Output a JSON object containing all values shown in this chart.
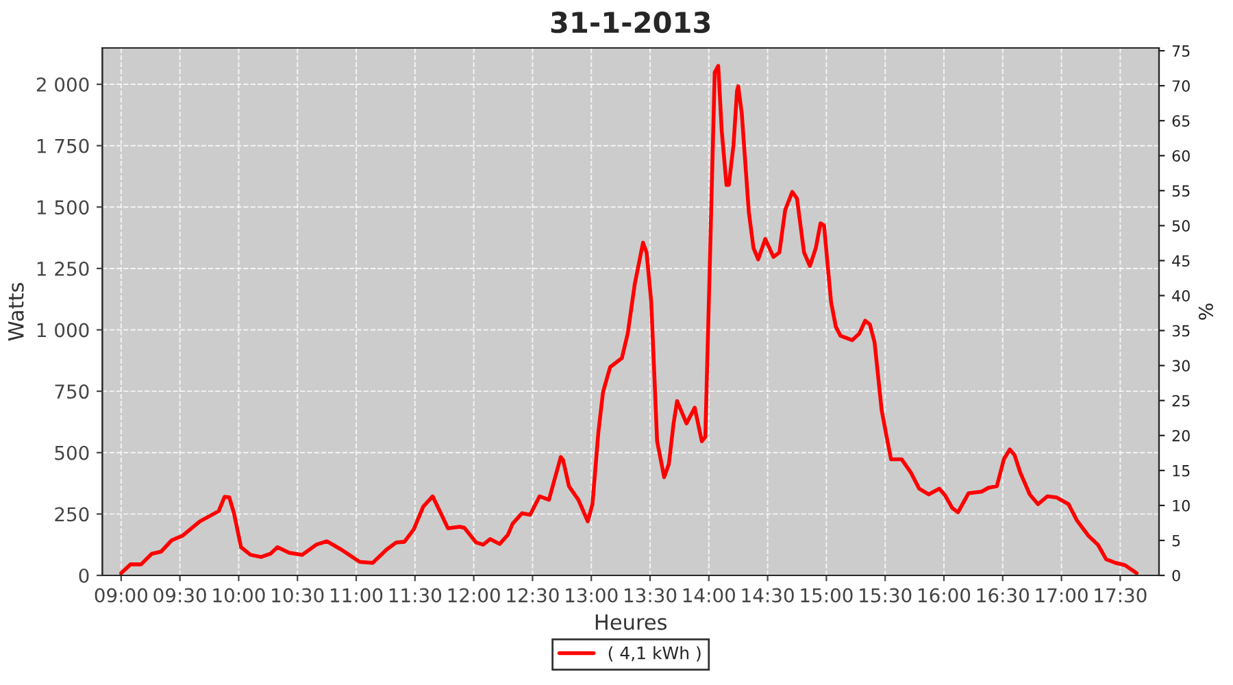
{
  "chart_data": {
    "type": "line",
    "title": "31-1-2013",
    "xlabel": "Heures",
    "ylabel": "Watts",
    "y2label": "%",
    "x": [
      9.0,
      9.08,
      9.17,
      9.26,
      9.34,
      9.43,
      9.52,
      9.67,
      9.83,
      9.88,
      9.92,
      9.96,
      10.02,
      10.1,
      10.19,
      10.27,
      10.33,
      10.43,
      10.54,
      10.66,
      10.75,
      10.87,
      11.03,
      11.14,
      11.26,
      11.34,
      11.41,
      11.49,
      11.57,
      11.65,
      11.72,
      11.78,
      11.88,
      11.92,
      12.02,
      12.08,
      12.14,
      12.22,
      12.29,
      12.33,
      12.41,
      12.48,
      12.56,
      12.64,
      12.74,
      12.76,
      12.81,
      12.89,
      12.97,
      13.01,
      13.06,
      13.1,
      13.16,
      13.26,
      13.31,
      13.37,
      13.44,
      13.47,
      13.51,
      13.56,
      13.62,
      13.66,
      13.7,
      13.73,
      13.81,
      13.88,
      13.94,
      13.97,
      14.01,
      14.05,
      14.08,
      14.11,
      14.15,
      14.17,
      14.21,
      14.24,
      14.25,
      14.28,
      14.34,
      14.38,
      14.42,
      14.48,
      14.55,
      14.6,
      14.65,
      14.71,
      14.75,
      14.81,
      14.86,
      14.91,
      14.95,
      14.98,
      15.04,
      15.08,
      15.12,
      15.22,
      15.28,
      15.33,
      15.37,
      15.41,
      15.47,
      15.52,
      15.55,
      15.64,
      15.72,
      15.79,
      15.87,
      15.96,
      16.01,
      16.07,
      16.12,
      16.21,
      16.32,
      16.38,
      16.45,
      16.51,
      16.56,
      16.6,
      16.65,
      16.73,
      16.8,
      16.88,
      16.96,
      17.06,
      17.13,
      17.23,
      17.31,
      17.38,
      17.46,
      17.54,
      17.64
    ],
    "series": [
      {
        "name": "( 4,1 kWh )",
        "color": "#ff0000",
        "values": [
          9,
          45,
          45,
          88,
          97,
          143,
          161,
          220,
          262,
          320,
          318,
          253,
          115,
          84,
          75,
          88,
          115,
          92,
          84,
          125,
          139,
          106,
          55,
          51,
          106,
          134,
          137,
          188,
          280,
          322,
          253,
          192,
          198,
          194,
          134,
          125,
          148,
          128,
          165,
          210,
          253,
          247,
          322,
          308,
          482,
          470,
          363,
          308,
          220,
          290,
          582,
          747,
          848,
          885,
          985,
          1187,
          1355,
          1315,
          1114,
          546,
          400,
          454,
          619,
          710,
          619,
          683,
          546,
          564,
          1297,
          2048,
          2075,
          1809,
          1590,
          1590,
          1754,
          1974,
          1992,
          1883,
          1480,
          1333,
          1287,
          1370,
          1297,
          1315,
          1489,
          1562,
          1535,
          1315,
          1260,
          1333,
          1434,
          1425,
          1114,
          1013,
          976,
          958,
          985,
          1037,
          1022,
          949,
          674,
          546,
          473,
          473,
          418,
          353,
          330,
          353,
          326,
          275,
          257,
          335,
          341,
          357,
          363,
          473,
          513,
          491,
          418,
          330,
          290,
          322,
          317,
          290,
          225,
          161,
          125,
          66,
          51,
          42,
          9
        ]
      }
    ],
    "xlim": [
      8.84,
      17.83
    ],
    "xticks": [
      {
        "value": 9.0,
        "label": "09:00"
      },
      {
        "value": 9.5,
        "label": "09:30"
      },
      {
        "value": 10.0,
        "label": "10:00"
      },
      {
        "value": 10.5,
        "label": "10:30"
      },
      {
        "value": 11.0,
        "label": "11:00"
      },
      {
        "value": 11.5,
        "label": "11:30"
      },
      {
        "value": 12.0,
        "label": "12:00"
      },
      {
        "value": 12.5,
        "label": "12:30"
      },
      {
        "value": 13.0,
        "label": "13:00"
      },
      {
        "value": 13.5,
        "label": "13:30"
      },
      {
        "value": 14.0,
        "label": "14:00"
      },
      {
        "value": 14.5,
        "label": "14:30"
      },
      {
        "value": 15.0,
        "label": "15:00"
      },
      {
        "value": 15.5,
        "label": "15:30"
      },
      {
        "value": 16.0,
        "label": "16:00"
      },
      {
        "value": 16.5,
        "label": "16:30"
      },
      {
        "value": 17.0,
        "label": "17:00"
      },
      {
        "value": 17.5,
        "label": "17:30"
      }
    ],
    "ylim": [
      0,
      2148
    ],
    "yticks": [
      0,
      250,
      500,
      750,
      {
        "value": 1000,
        "label": "1 000"
      },
      {
        "value": 1250,
        "label": "1 250"
      },
      {
        "value": 1500,
        "label": "1 500"
      },
      {
        "value": 1750,
        "label": "1 750"
      },
      {
        "value": 2000,
        "label": "2 000"
      }
    ],
    "y2lim": [
      0,
      75.4
    ],
    "y2ticks": [
      0,
      5,
      10,
      15,
      20,
      25,
      30,
      35,
      40,
      45,
      50,
      55,
      60,
      65,
      70,
      75
    ],
    "grid": true,
    "legend": "bottom",
    "marker": "none",
    "line_style": "solid"
  }
}
